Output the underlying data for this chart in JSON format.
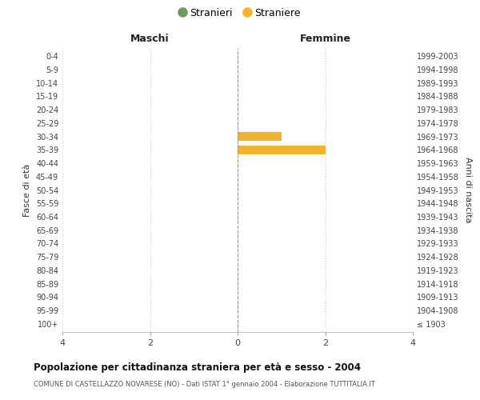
{
  "age_groups": [
    "0-4",
    "5-9",
    "10-14",
    "15-19",
    "20-24",
    "25-29",
    "30-34",
    "35-39",
    "40-44",
    "45-49",
    "50-54",
    "55-59",
    "60-64",
    "65-69",
    "70-74",
    "75-79",
    "80-84",
    "85-89",
    "90-94",
    "95-99",
    "100+"
  ],
  "birth_years": [
    "1999-2003",
    "1994-1998",
    "1989-1993",
    "1984-1988",
    "1979-1983",
    "1974-1978",
    "1969-1973",
    "1964-1968",
    "1959-1963",
    "1954-1958",
    "1949-1953",
    "1944-1948",
    "1939-1943",
    "1934-1938",
    "1929-1933",
    "1924-1928",
    "1919-1923",
    "1914-1918",
    "1909-1913",
    "1904-1908",
    "≤ 1903"
  ],
  "males": [
    0,
    0,
    0,
    0,
    0,
    0,
    0,
    0,
    0,
    0,
    0,
    0,
    0,
    0,
    0,
    0,
    0,
    0,
    0,
    0,
    0
  ],
  "females": [
    0,
    0,
    0,
    0,
    0,
    0,
    1,
    2,
    0,
    0,
    0,
    0,
    0,
    0,
    0,
    0,
    0,
    0,
    0,
    0,
    0
  ],
  "male_color": "#6a9e5a",
  "female_color": "#f0b432",
  "legend_male": "Stranieri",
  "legend_female": "Straniere",
  "title": "Popolazione per cittadinanza straniera per età e sesso - 2004",
  "subtitle": "COMUNE DI CASTELLAZZO NOVARESE (NO) - Dati ISTAT 1° gennaio 2004 - Elaborazione TUTTITALIA.IT",
  "xlabel_left": "Maschi",
  "xlabel_right": "Femmine",
  "ylabel_left": "Fasce di età",
  "ylabel_right": "Anni di nascita",
  "xlim": 4,
  "background_color": "#ffffff",
  "grid_color": "#cccccc",
  "spine_color": "#aaaaaa"
}
